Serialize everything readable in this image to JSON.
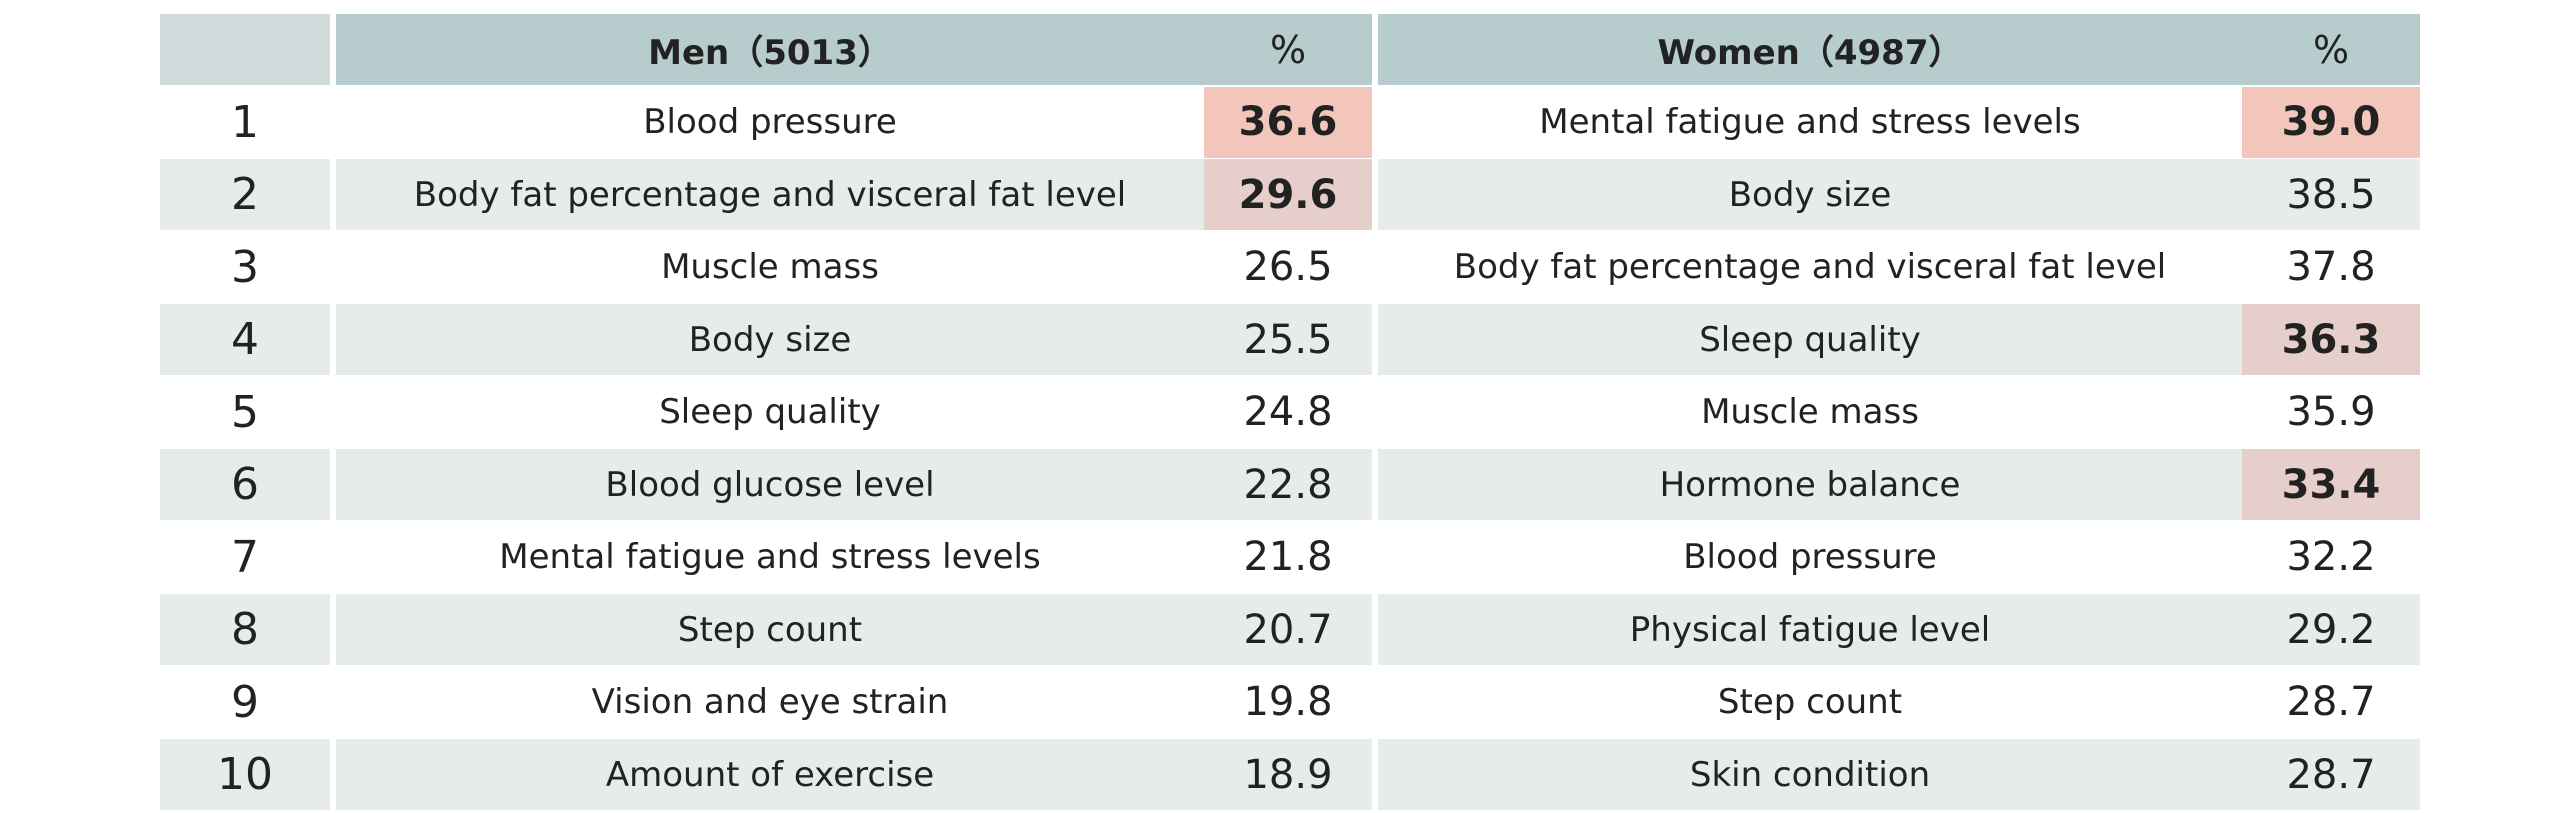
{
  "header": {
    "men": "Men（5013）",
    "men_pct": "%",
    "women": "Women（4987）",
    "women_pct": "%"
  },
  "rows": [
    {
      "rank": "1",
      "men_item": "Blood pressure",
      "men_pct": "36.6",
      "women_item": "Mental fatigue and stress levels",
      "women_pct": "39.0"
    },
    {
      "rank": "2",
      "men_item": "Body fat percentage and visceral fat level",
      "men_pct": "29.6",
      "women_item": "Body size",
      "women_pct": "38.5"
    },
    {
      "rank": "3",
      "men_item": "Muscle mass",
      "men_pct": "26.5",
      "women_item": "Body fat percentage and visceral fat level",
      "women_pct": "37.8"
    },
    {
      "rank": "4",
      "men_item": "Body size",
      "men_pct": "25.5",
      "women_item": "Sleep quality",
      "women_pct": "36.3"
    },
    {
      "rank": "5",
      "men_item": "Sleep quality",
      "men_pct": "24.8",
      "women_item": "Muscle mass",
      "women_pct": "35.9"
    },
    {
      "rank": "6",
      "men_item": "Blood glucose level",
      "men_pct": "22.8",
      "women_item": "Hormone balance",
      "women_pct": "33.4"
    },
    {
      "rank": "7",
      "men_item": "Mental fatigue and stress levels",
      "men_pct": "21.8",
      "women_item": "Blood pressure",
      "women_pct": "32.2"
    },
    {
      "rank": "8",
      "men_item": "Step count",
      "men_pct": "20.7",
      "women_item": "Physical fatigue level",
      "women_pct": "29.2"
    },
    {
      "rank": "9",
      "men_item": "Vision and eye strain",
      "men_pct": "19.8",
      "women_item": "Step count",
      "women_pct": "28.7"
    },
    {
      "rank": "10",
      "men_item": "Amount of exercise",
      "men_pct": "18.9",
      "women_item": "Skin condition",
      "women_pct": "28.7"
    }
  ],
  "highlights": {
    "strong": [
      "men.0",
      "women.0"
    ],
    "light": [
      "men.1",
      "women.3",
      "women.5"
    ]
  },
  "colors": {
    "strong_highlight": "#f3c6bb",
    "light_highlight": "#e6cfca",
    "header": "#b6cccd",
    "band": "#e6ecec"
  },
  "chart_data": {
    "type": "table",
    "columns": [
      "",
      "Men（5013）",
      "%",
      "Women（4987）",
      "%"
    ],
    "rows": [
      [
        "1",
        "Blood pressure",
        36.6,
        "Mental fatigue and stress levels",
        39.0
      ],
      [
        "2",
        "Body fat percentage and visceral fat level",
        29.6,
        "Body size",
        38.5
      ],
      [
        "3",
        "Muscle mass",
        26.5,
        "Body fat percentage and visceral fat level",
        37.8
      ],
      [
        "4",
        "Body size",
        25.5,
        "Sleep quality",
        36.3
      ],
      [
        "5",
        "Sleep quality",
        24.8,
        "Muscle mass",
        35.9
      ],
      [
        "6",
        "Blood glucose level",
        22.8,
        "Hormone balance",
        33.4
      ],
      [
        "7",
        "Mental fatigue and stress levels",
        21.8,
        "Blood pressure",
        32.2
      ],
      [
        "8",
        "Step count",
        20.7,
        "Physical fatigue level",
        29.2
      ],
      [
        "9",
        "Vision and eye strain",
        19.8,
        "Step count",
        28.7
      ],
      [
        "10",
        "Amount of exercise",
        18.9,
        "Skin condition",
        28.7
      ]
    ]
  }
}
